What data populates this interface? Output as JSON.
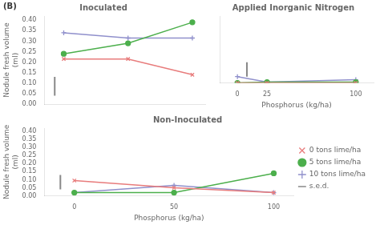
{
  "chart_data": [
    {
      "type": "line",
      "title": "Inoculated",
      "annotations": [
        "(B)"
      ],
      "ylabel": "Nodule fresh volume\n(ml)",
      "x": [
        0,
        50,
        100
      ],
      "series": [
        {
          "name": "0 tons lime/ha",
          "color": "#e87c7c",
          "marker": "x",
          "values": [
            0.215,
            0.215,
            0.14
          ]
        },
        {
          "name": "5 tons lime/ha",
          "color": "#4caf4c",
          "marker": "circle",
          "values": [
            0.24,
            0.29,
            0.39
          ]
        },
        {
          "name": "10 tons lime/ha",
          "color": "#9090cc",
          "marker": "plus",
          "values": [
            0.34,
            0.315,
            0.315
          ]
        },
        {
          "name": "s.e.d.",
          "type": "errorbar",
          "color": "#888888",
          "x": [
            -7
          ],
          "values": [
            0.085
          ],
          "error": [
            0.045
          ]
        }
      ],
      "xlim": [
        -15,
        110
      ],
      "xticks": [
        0,
        50,
        100
      ],
      "ylim": [
        0.0,
        0.42
      ],
      "yticks": [
        {
          "value": 0.0,
          "label": "0.00"
        },
        {
          "value": 0.05,
          "label": "0.05"
        },
        {
          "value": 0.1,
          "label": "0.10"
        },
        {
          "value": 0.15,
          "label": "0.15"
        },
        {
          "value": 0.2,
          "label": "0.20"
        },
        {
          "value": 0.25,
          "label": "0.25"
        },
        {
          "value": 0.3,
          "label": "0.30"
        },
        {
          "value": 0.35,
          "label": "0.35"
        },
        {
          "value": 0.4,
          "label": "0.40"
        }
      ],
      "grid": false,
      "tick_labels": "y"
    },
    {
      "type": "line",
      "title": "Applied Inorganic Nitrogen",
      "xlabel": "Phosphorus (kg/ha)",
      "x": [
        0,
        25,
        100
      ],
      "series": [
        {
          "name": "0 tons lime/ha",
          "color": "#e87c7c",
          "marker": "x",
          "values": [
            0.0,
            0.0,
            0.0
          ]
        },
        {
          "name": "5 tons lime/ha",
          "color": "#4caf4c",
          "marker": "circle",
          "values": [
            0.0,
            0.005,
            0.005
          ]
        },
        {
          "name": "10 tons lime/ha",
          "color": "#9090cc",
          "marker": "plus",
          "values": [
            0.04,
            0.005,
            0.02
          ]
        },
        {
          "name": "s.e.d.",
          "type": "errorbar",
          "color": "#888888",
          "x": [
            8
          ],
          "values": [
            0.085
          ],
          "error": [
            0.045
          ]
        }
      ],
      "xlim": [
        -15,
        115
      ],
      "xticks": [
        0,
        25,
        100
      ],
      "ylim": [
        0.0,
        0.42
      ],
      "yticks": [
        {
          "value": 0.0,
          "label": "0.00"
        },
        {
          "value": 0.05,
          "label": "0.05"
        },
        {
          "value": 0.1,
          "label": "0.10"
        },
        {
          "value": 0.15,
          "label": "0.15"
        },
        {
          "value": 0.2,
          "label": "0.20"
        },
        {
          "value": 0.25,
          "label": "0.25"
        },
        {
          "value": 0.3,
          "label": "0.30"
        },
        {
          "value": 0.35,
          "label": "0.35"
        },
        {
          "value": 0.4,
          "label": "0.40"
        }
      ],
      "grid": false,
      "tick_labels": "x"
    },
    {
      "type": "line",
      "title": "Non-Inoculated",
      "xlabel": "Phosphorus (kg/ha)",
      "ylabel": "Nodule fresh volume\n(ml)",
      "x": [
        0,
        50,
        100
      ],
      "series": [
        {
          "name": "0 tons lime/ha",
          "color": "#e87c7c",
          "marker": "x",
          "values": [
            0.095,
            0.05,
            0.02
          ]
        },
        {
          "name": "5 tons lime/ha",
          "color": "#4caf4c",
          "marker": "circle",
          "values": [
            0.02,
            0.02,
            0.14
          ]
        },
        {
          "name": "10 tons lime/ha",
          "color": "#9090cc",
          "marker": "plus",
          "values": [
            0.02,
            0.065,
            0.02
          ]
        },
        {
          "name": "s.e.d.",
          "type": "errorbar",
          "color": "#888888",
          "x": [
            -7
          ],
          "values": [
            0.085
          ],
          "error": [
            0.045
          ]
        }
      ],
      "xlim": [
        -15,
        110
      ],
      "xticks": [
        0,
        50,
        100
      ],
      "ylim": [
        0.0,
        0.42
      ],
      "yticks": [
        {
          "value": 0.0,
          "label": "0.00"
        },
        {
          "value": 0.05,
          "label": "0.05"
        },
        {
          "value": 0.1,
          "label": "0.10"
        },
        {
          "value": 0.15,
          "label": "0.15"
        },
        {
          "value": 0.2,
          "label": "0.20"
        },
        {
          "value": 0.25,
          "label": "0.25"
        },
        {
          "value": 0.3,
          "label": "0.30"
        },
        {
          "value": 0.35,
          "label": "0.35"
        },
        {
          "value": 0.4,
          "label": "0.40"
        }
      ],
      "grid": false,
      "legend": "right"
    }
  ]
}
